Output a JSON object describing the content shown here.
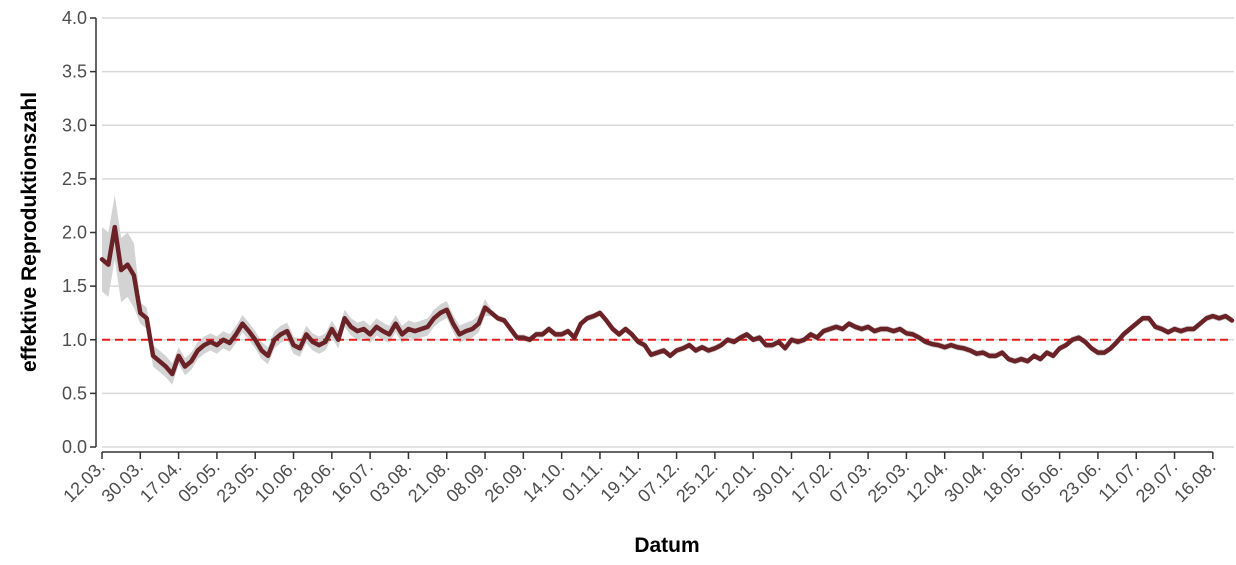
{
  "chart_data": {
    "type": "line",
    "y_label": "effektive Reproduktionszahl",
    "x_label": "Datum",
    "categories": [
      "12.03.",
      null,
      null,
      null,
      null,
      null,
      "30.03.",
      null,
      null,
      null,
      null,
      null,
      "17.04.",
      null,
      null,
      null,
      null,
      null,
      "05.05.",
      null,
      null,
      null,
      null,
      null,
      "23.05.",
      null,
      null,
      null,
      null,
      null,
      "10.06.",
      null,
      null,
      null,
      null,
      null,
      "28.06.",
      null,
      null,
      null,
      null,
      null,
      "16.07.",
      null,
      null,
      null,
      null,
      null,
      "03.08.",
      null,
      null,
      null,
      null,
      null,
      "21.08.",
      null,
      null,
      null,
      null,
      null,
      "08.09.",
      null,
      null,
      null,
      null,
      null,
      "26.09.",
      null,
      null,
      null,
      null,
      null,
      "14.10.",
      null,
      null,
      null,
      null,
      null,
      "01.11.",
      null,
      null,
      null,
      null,
      null,
      "19.11.",
      null,
      null,
      null,
      null,
      null,
      "07.12.",
      null,
      null,
      null,
      null,
      null,
      "25.12.",
      null,
      null,
      null,
      null,
      null,
      "12.01.",
      null,
      null,
      null,
      null,
      null,
      "30.01.",
      null,
      null,
      null,
      null,
      null,
      "17.02.",
      null,
      null,
      null,
      null,
      null,
      "07.03.",
      null,
      null,
      null,
      null,
      null,
      "25.03.",
      null,
      null,
      null,
      null,
      null,
      "12.04.",
      null,
      null,
      null,
      null,
      null,
      "30.04.",
      null,
      null,
      null,
      null,
      null,
      "18.05.",
      null,
      null,
      null,
      null,
      null,
      "05.06.",
      null,
      null,
      null,
      null,
      null,
      "23.06.",
      null,
      null,
      null,
      null,
      null,
      "11.07.",
      null,
      null,
      null,
      null,
      null,
      "29.07.",
      null,
      null,
      null,
      null,
      null,
      "16.08.",
      null,
      null,
      null
    ],
    "values": [
      1.75,
      1.7,
      2.05,
      1.65,
      1.7,
      1.6,
      1.25,
      1.2,
      0.85,
      0.8,
      0.75,
      0.68,
      0.85,
      0.75,
      0.8,
      0.9,
      0.95,
      0.98,
      0.95,
      1.0,
      0.97,
      1.05,
      1.15,
      1.08,
      1.0,
      0.9,
      0.85,
      1.0,
      1.05,
      1.08,
      0.95,
      0.92,
      1.05,
      0.98,
      0.95,
      0.98,
      1.1,
      1.0,
      1.2,
      1.12,
      1.08,
      1.1,
      1.05,
      1.12,
      1.08,
      1.05,
      1.15,
      1.05,
      1.1,
      1.08,
      1.1,
      1.12,
      1.2,
      1.25,
      1.28,
      1.15,
      1.05,
      1.08,
      1.1,
      1.15,
      1.3,
      1.25,
      1.2,
      1.18,
      1.1,
      1.02,
      1.02,
      1.0,
      1.05,
      1.05,
      1.1,
      1.05,
      1.05,
      1.08,
      1.02,
      1.15,
      1.2,
      1.22,
      1.25,
      1.18,
      1.1,
      1.05,
      1.1,
      1.05,
      0.98,
      0.95,
      0.86,
      0.88,
      0.9,
      0.85,
      0.9,
      0.92,
      0.95,
      0.9,
      0.93,
      0.9,
      0.92,
      0.95,
      1.0,
      0.98,
      1.02,
      1.05,
      1.0,
      1.02,
      0.95,
      0.95,
      0.98,
      0.92,
      1.0,
      0.98,
      1.0,
      1.05,
      1.02,
      1.08,
      1.1,
      1.12,
      1.1,
      1.15,
      1.12,
      1.1,
      1.12,
      1.08,
      1.1,
      1.1,
      1.08,
      1.1,
      1.06,
      1.05,
      1.02,
      0.98,
      0.96,
      0.95,
      0.93,
      0.95,
      0.93,
      0.92,
      0.9,
      0.87,
      0.88,
      0.85,
      0.85,
      0.88,
      0.82,
      0.8,
      0.82,
      0.8,
      0.85,
      0.82,
      0.88,
      0.85,
      0.92,
      0.95,
      1.0,
      1.02,
      0.98,
      0.92,
      0.88,
      0.88,
      0.92,
      0.98,
      1.05,
      1.1,
      1.15,
      1.2,
      1.2,
      1.12,
      1.1,
      1.07,
      1.1,
      1.08,
      1.1,
      1.1,
      1.15,
      1.2,
      1.22,
      1.2,
      1.22,
      1.18
    ],
    "lower": [
      1.45,
      1.4,
      1.75,
      1.35,
      1.4,
      1.3,
      1.15,
      1.1,
      0.75,
      0.7,
      0.65,
      0.58,
      0.77,
      0.67,
      0.72,
      0.82,
      0.87,
      0.9,
      0.87,
      0.92,
      0.89,
      0.97,
      1.07,
      1.0,
      0.92,
      0.82,
      0.77,
      0.92,
      0.97,
      1.0,
      0.87,
      0.84,
      0.97,
      0.9,
      0.87,
      0.9,
      1.02,
      0.92,
      1.12,
      1.04,
      1.0,
      1.02,
      0.97,
      1.04,
      1.0,
      0.97,
      1.07,
      0.97,
      1.02,
      1.0,
      1.02,
      1.04,
      1.12,
      1.17,
      1.2,
      1.07,
      0.97,
      1.0,
      1.02,
      1.07,
      1.22,
      1.22,
      1.17,
      1.15,
      1.07,
      0.99,
      0.99,
      0.97,
      1.02,
      1.02,
      1.07,
      1.02,
      1.02,
      1.05,
      0.99,
      1.12,
      1.17,
      1.19,
      1.22,
      1.15,
      1.07,
      1.02,
      1.07,
      1.02,
      0.95,
      0.92,
      0.83,
      0.85,
      0.87,
      0.82,
      0.87,
      0.89,
      0.92,
      0.87,
      0.9,
      0.87,
      0.89,
      0.92,
      0.97,
      0.95,
      0.99,
      1.02,
      0.97,
      0.99,
      0.92,
      0.92,
      0.95,
      0.89,
      0.97,
      0.95,
      0.97,
      1.02,
      0.99,
      1.05,
      1.07,
      1.09,
      1.07,
      1.12,
      1.09,
      1.07,
      1.09,
      1.05,
      1.07,
      1.07,
      1.05,
      1.07,
      1.03,
      1.02,
      0.99,
      0.95,
      0.93,
      0.92,
      0.9,
      0.92,
      0.9,
      0.89,
      0.87,
      0.84,
      0.85,
      0.82,
      0.82,
      0.85,
      0.79,
      0.77,
      0.79,
      0.77,
      0.82,
      0.79,
      0.85,
      0.82,
      0.89,
      0.92,
      0.97,
      0.99,
      0.95,
      0.89,
      0.85,
      0.85,
      0.89,
      0.95,
      1.02,
      1.07,
      1.12,
      1.17,
      1.17,
      1.09,
      1.07,
      1.04,
      1.07,
      1.05,
      1.07,
      1.07,
      1.12,
      1.17,
      1.19,
      1.17,
      1.19,
      1.15
    ],
    "upper": [
      2.05,
      2.0,
      2.35,
      1.95,
      2.0,
      1.9,
      1.35,
      1.3,
      0.95,
      0.9,
      0.85,
      0.78,
      0.93,
      0.83,
      0.88,
      0.98,
      1.03,
      1.06,
      1.03,
      1.08,
      1.05,
      1.13,
      1.23,
      1.16,
      1.08,
      0.98,
      0.93,
      1.08,
      1.13,
      1.16,
      1.03,
      1.0,
      1.13,
      1.06,
      1.03,
      1.06,
      1.18,
      1.08,
      1.28,
      1.2,
      1.16,
      1.18,
      1.13,
      1.2,
      1.16,
      1.13,
      1.23,
      1.13,
      1.18,
      1.16,
      1.18,
      1.2,
      1.28,
      1.33,
      1.36,
      1.23,
      1.13,
      1.16,
      1.18,
      1.23,
      1.38,
      1.28,
      1.23,
      1.21,
      1.13,
      1.05,
      1.05,
      1.03,
      1.08,
      1.08,
      1.13,
      1.08,
      1.08,
      1.11,
      1.05,
      1.18,
      1.23,
      1.25,
      1.28,
      1.21,
      1.13,
      1.08,
      1.13,
      1.08,
      1.01,
      0.98,
      0.89,
      0.91,
      0.93,
      0.88,
      0.93,
      0.95,
      0.98,
      0.93,
      0.96,
      0.93,
      0.95,
      0.98,
      1.03,
      1.01,
      1.05,
      1.08,
      1.03,
      1.05,
      0.98,
      0.98,
      1.01,
      0.95,
      1.03,
      1.01,
      1.03,
      1.08,
      1.05,
      1.11,
      1.13,
      1.15,
      1.13,
      1.18,
      1.15,
      1.13,
      1.15,
      1.11,
      1.13,
      1.13,
      1.11,
      1.13,
      1.09,
      1.08,
      1.05,
      1.01,
      0.99,
      0.98,
      0.96,
      0.98,
      0.96,
      0.95,
      0.93,
      0.9,
      0.91,
      0.88,
      0.88,
      0.91,
      0.85,
      0.83,
      0.85,
      0.83,
      0.88,
      0.85,
      0.91,
      0.88,
      0.95,
      0.98,
      1.03,
      1.05,
      1.01,
      0.95,
      0.91,
      0.91,
      0.95,
      1.01,
      1.08,
      1.13,
      1.18,
      1.23,
      1.23,
      1.15,
      1.13,
      1.1,
      1.13,
      1.11,
      1.13,
      1.13,
      1.18,
      1.23,
      1.25,
      1.23,
      1.25,
      1.21
    ],
    "color": "#6b2227",
    "band_color": "#d3d3d3",
    "reference_line": 1,
    "reference_color": "#e41a1c",
    "ylim": [
      0,
      4
    ],
    "yticks": [
      {
        "value": 0,
        "label": "0.0"
      },
      {
        "value": 0.5,
        "label": "0.5"
      },
      {
        "value": 1,
        "label": "1.0"
      },
      {
        "value": 1.5,
        "label": "1.5"
      },
      {
        "value": 2,
        "label": "2.0"
      },
      {
        "value": 2.5,
        "label": "2.5"
      },
      {
        "value": 3,
        "label": "3.0"
      },
      {
        "value": 3.5,
        "label": "3.5"
      },
      {
        "value": 4,
        "label": "4.0"
      }
    ],
    "grid": true
  }
}
